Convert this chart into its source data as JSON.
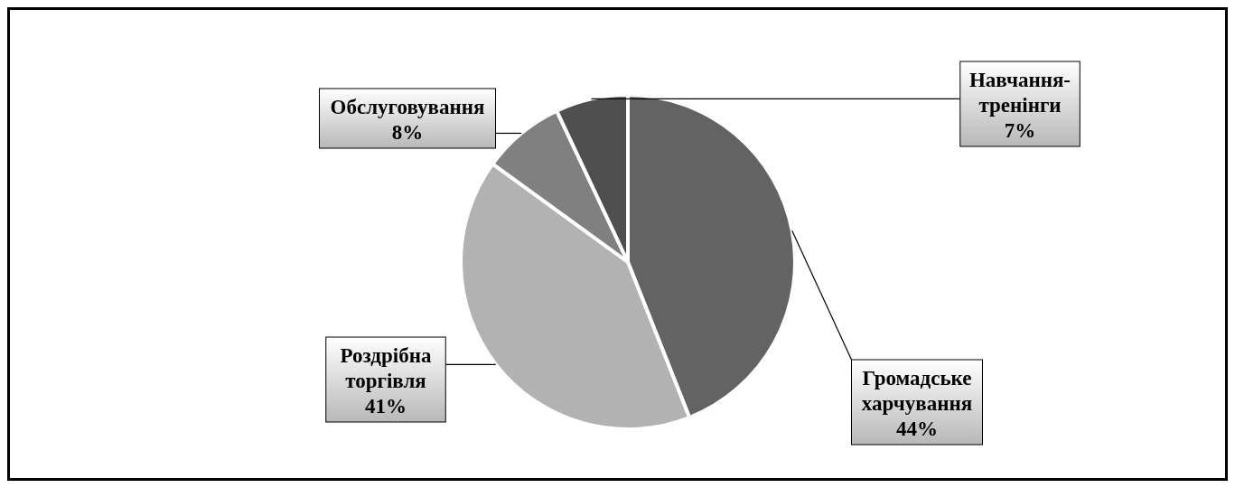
{
  "chart_data": {
    "type": "pie",
    "categories": [
      "Громадське харчування",
      "Роздрібна торгівля",
      "Обслуговування",
      "Навчання-тренінги"
    ],
    "values": [
      44,
      41,
      8,
      7
    ],
    "value_labels": [
      "44%",
      "41%",
      "8%",
      "7%"
    ],
    "colors": [
      "#636363",
      "#b2b2b2",
      "#808080",
      "#4f4f4f"
    ]
  }
}
